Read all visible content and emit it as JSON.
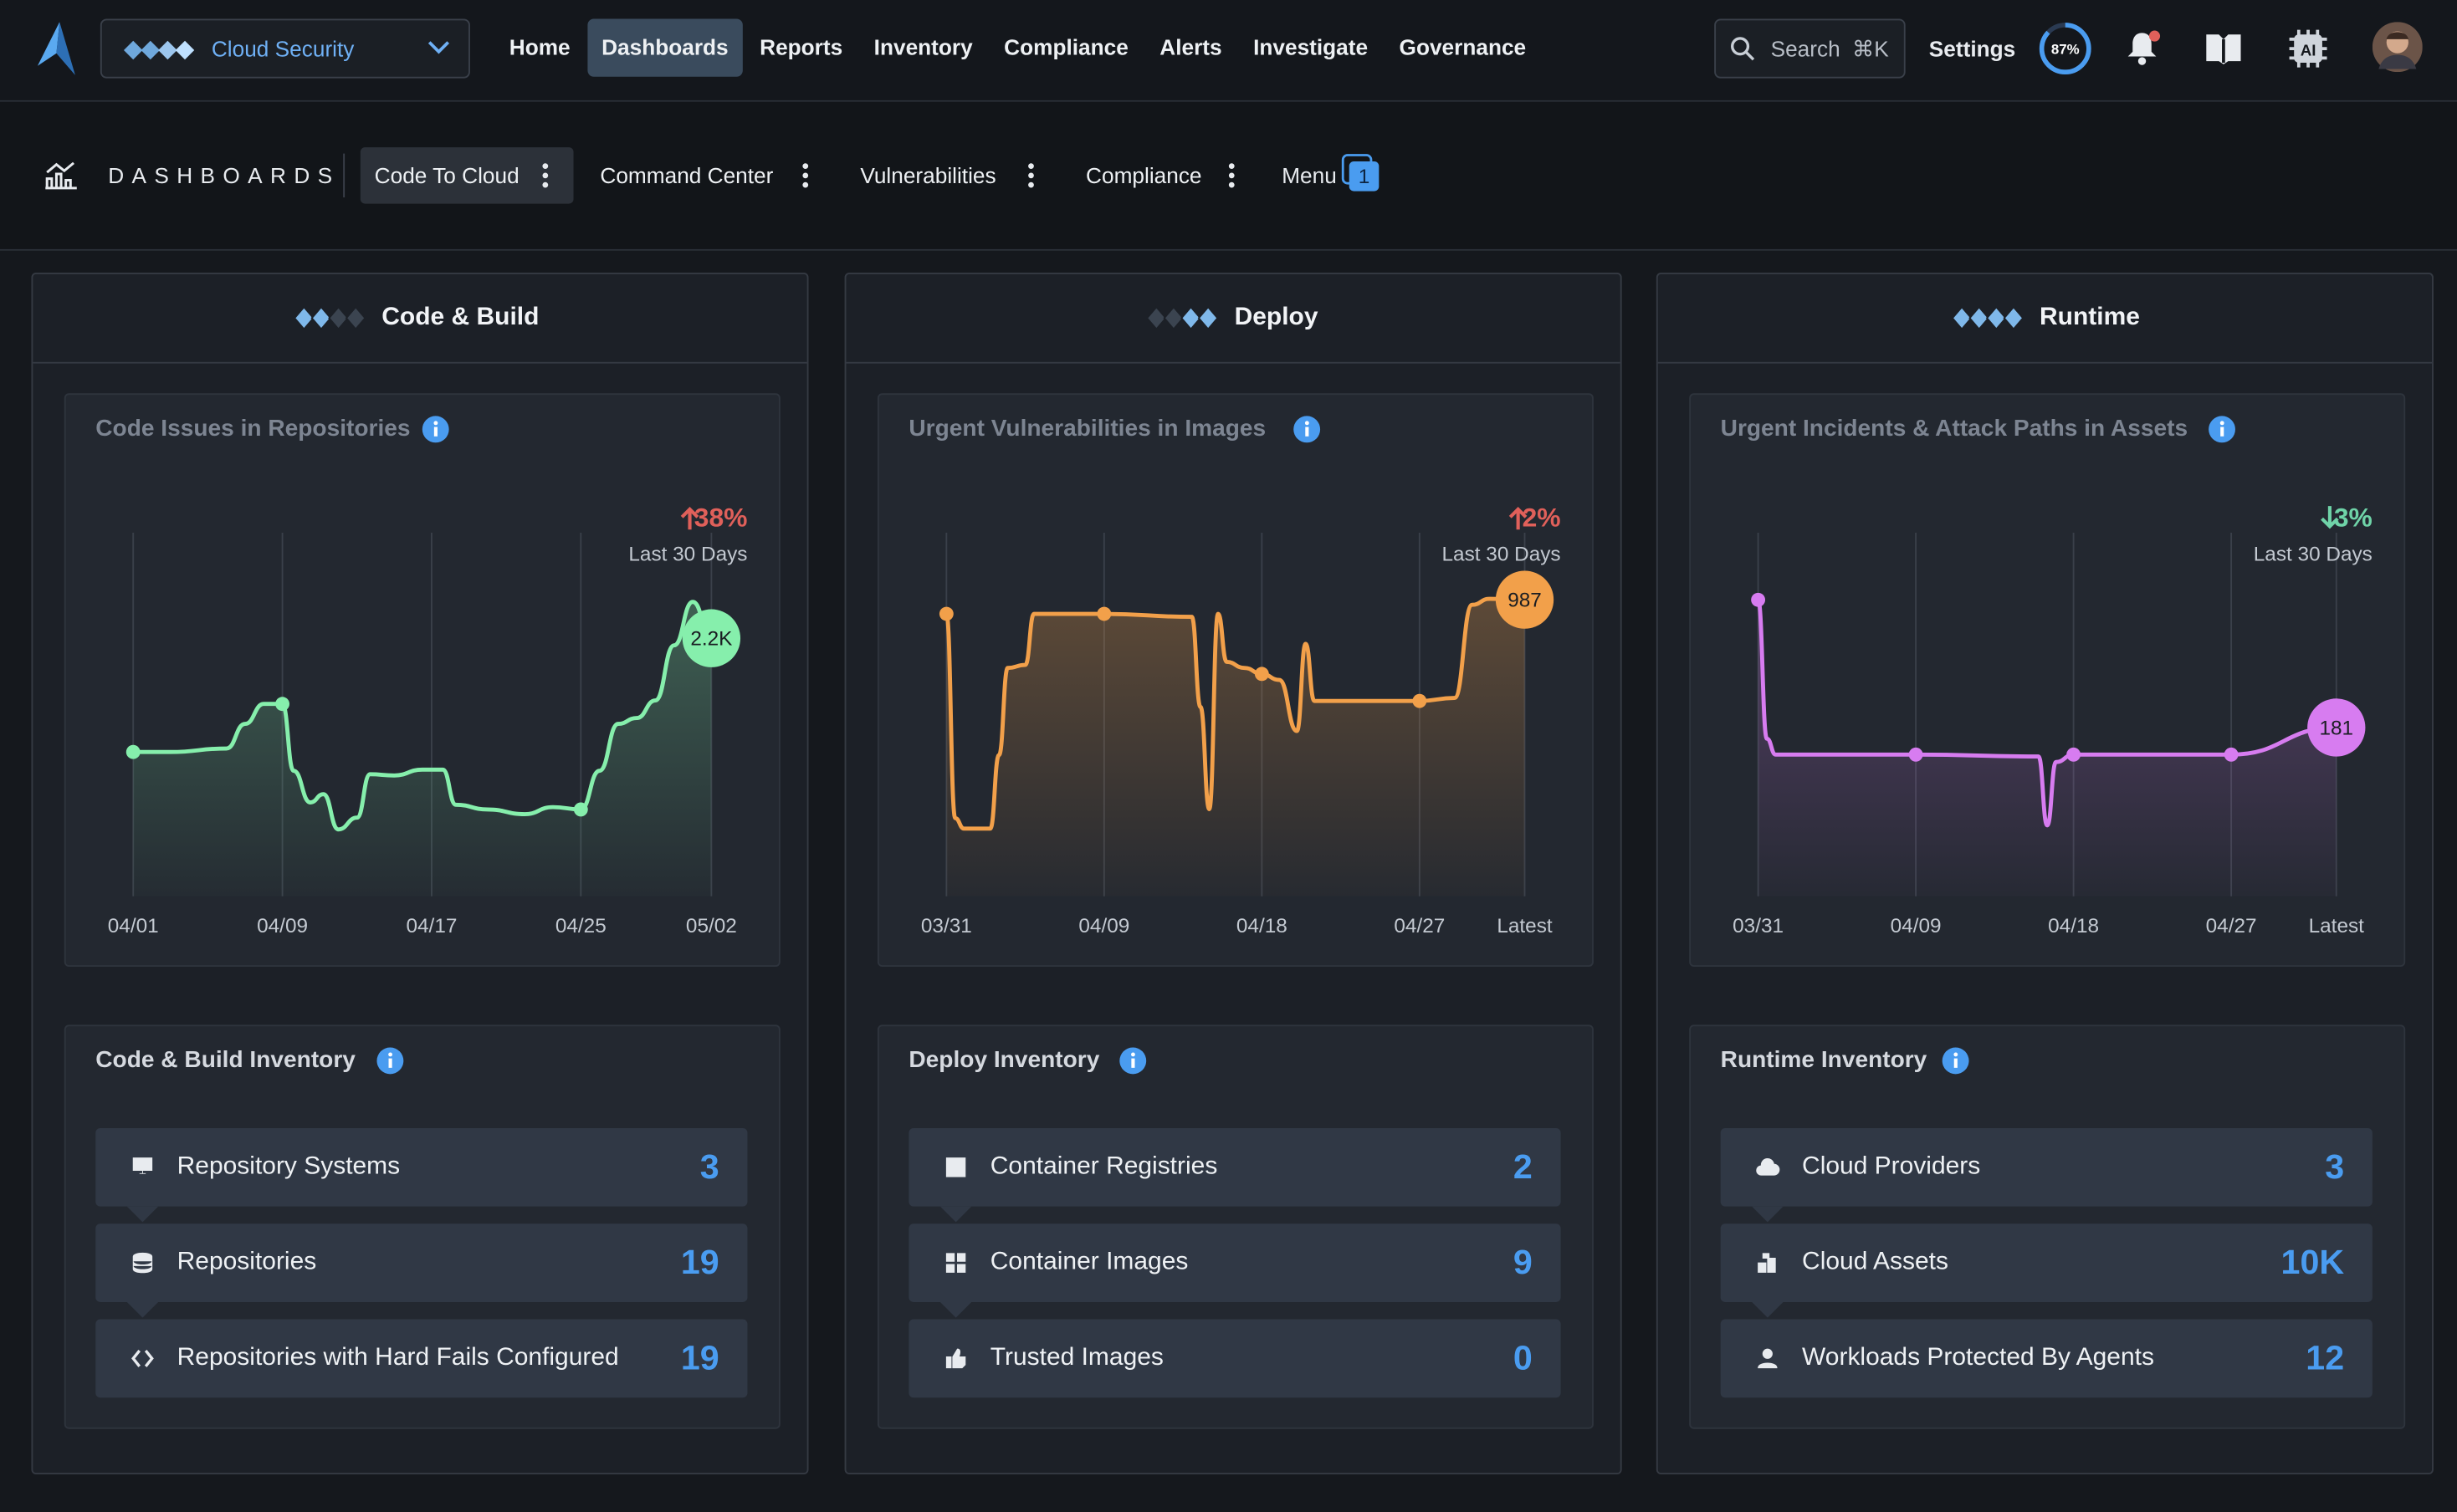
{
  "nav": {
    "product": "Cloud Security",
    "items": [
      "Home",
      "Dashboards",
      "Reports",
      "Inventory",
      "Compliance",
      "Alerts",
      "Investigate",
      "Governance"
    ],
    "active": 1,
    "search": "Search",
    "shortcut": "⌘K",
    "settings": "Settings",
    "score": "87%",
    "ai": "AI"
  },
  "tabs": {
    "title": "DASHBOARDS",
    "items": [
      "Code To Cloud",
      "Command Center",
      "Vulnerabilities",
      "Compliance"
    ],
    "active": 0,
    "menu": "Menu",
    "menu_count": 1
  },
  "columns": [
    {
      "title": "Code & Build",
      "chart": {
        "type": "line",
        "title": "Code Issues in Repositories",
        "change": "38%",
        "trend": "up",
        "period": "Last 30 Days",
        "color": "#86efac",
        "x": [
          0,
          2,
          5,
          6,
          7,
          8,
          8.6,
          9.5,
          10.2,
          11,
          12,
          12.7,
          14,
          15.5,
          16.6,
          17.3,
          19,
          21,
          22.5,
          24,
          25,
          26,
          27,
          28,
          29,
          30,
          31
        ],
        "values": [
          1230,
          1230,
          1260,
          1470,
          1640,
          1640,
          1070,
          800,
          870,
          570,
          670,
          1040,
          1030,
          1080,
          1080,
          780,
          740,
          700,
          760,
          740,
          1070,
          1470,
          1520,
          1670,
          2140,
          2510,
          2200
        ],
        "value_labels": [
          null,
          null,
          null,
          null,
          null,
          null,
          null,
          null,
          null,
          null,
          null,
          null,
          null,
          null,
          null,
          null,
          null,
          null,
          null,
          null,
          null,
          null,
          null,
          null,
          null,
          null,
          "2.2K"
        ],
        "xlim": [
          0,
          31
        ],
        "ylim": [
          0,
          3100
        ],
        "xticks": [
          {
            "value": 0,
            "label": "04/01"
          },
          {
            "value": 8,
            "label": "04/09"
          },
          {
            "value": 16,
            "label": "04/17"
          },
          {
            "value": 24,
            "label": "04/25"
          },
          {
            "value": 31,
            "label": "05/02"
          }
        ]
      },
      "inventory": {
        "title": "Code & Build Inventory",
        "rows": [
          {
            "label": "Repository Systems",
            "value": 3
          },
          {
            "label": "Repositories",
            "value": 19
          },
          {
            "label": "Repositories with Hard Fails Configured",
            "value": 19
          }
        ]
      }
    },
    {
      "title": "Deploy",
      "chart": {
        "type": "line",
        "title": "Urgent Vulnerabilities in Images",
        "change": "2%",
        "trend": "up",
        "period": "Last 30 Days",
        "color": "#f2a04a",
        "x": [
          0,
          0.5,
          1,
          2.5,
          3,
          3.5,
          4.5,
          5,
          9,
          14,
          14.5,
          15,
          15.5,
          16,
          17,
          18,
          19,
          20,
          20.5,
          21,
          27,
          29,
          30,
          31,
          33
        ],
        "values": [
          940,
          260,
          225,
          225,
          470,
          760,
          770,
          940,
          940,
          930,
          630,
          290,
          940,
          780,
          760,
          740,
          720,
          550,
          840,
          650,
          650,
          660,
          970,
          990,
          987
        ],
        "xlim": [
          0,
          33
        ],
        "ylim": [
          0,
          1210
        ],
        "xticks": [
          {
            "value": 0,
            "label": "03/31"
          },
          {
            "value": 9,
            "label": "04/09"
          },
          {
            "value": 18,
            "label": "04/18"
          },
          {
            "value": 27,
            "label": "04/27"
          },
          {
            "value": 33,
            "label": "Latest"
          }
        ]
      },
      "inventory": {
        "title": "Deploy Inventory",
        "rows": [
          {
            "label": "Container Registries",
            "value": 2
          },
          {
            "label": "Container Images",
            "value": 9
          },
          {
            "label": "Trusted Images",
            "value": 0
          }
        ]
      }
    },
    {
      "title": "Runtime",
      "chart": {
        "type": "line",
        "title": "Urgent Incidents & Attack Paths in Assets",
        "change": "3%",
        "trend": "down",
        "period": "Last 30 Days",
        "color": "#d77cf0",
        "x": [
          0,
          0.5,
          1,
          9,
          16,
          16.5,
          17,
          18,
          27,
          33
        ],
        "values": [
          318,
          169,
          152,
          152,
          150,
          76,
          144,
          152,
          152,
          181
        ],
        "xlim": [
          0,
          33
        ],
        "ylim": [
          0,
          390
        ],
        "xticks": [
          {
            "value": 0,
            "label": "03/31"
          },
          {
            "value": 9,
            "label": "04/09"
          },
          {
            "value": 18,
            "label": "04/18"
          },
          {
            "value": 27,
            "label": "04/27"
          },
          {
            "value": 33,
            "label": "Latest"
          }
        ]
      },
      "inventory": {
        "title": "Runtime Inventory",
        "rows": [
          {
            "label": "Cloud Providers",
            "value": 3
          },
          {
            "label": "Cloud Assets",
            "value": "10K"
          },
          {
            "label": "Workloads Protected By Agents",
            "value": 12
          }
        ]
      }
    }
  ]
}
